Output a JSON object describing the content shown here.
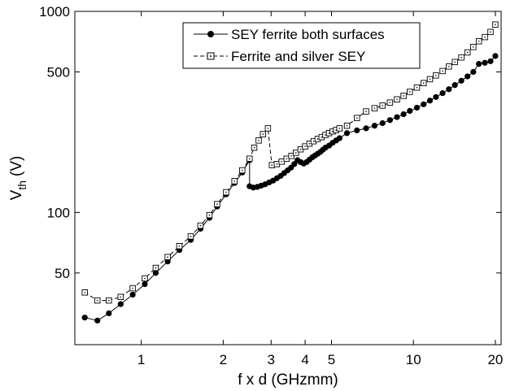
{
  "chart_data": {
    "type": "line",
    "xlabel": "f x d (GHzmm)",
    "ylabel": "V",
    "ylabel_sub": "th",
    "ylabel_unit": "(V)",
    "xscale": "log",
    "yscale": "log",
    "xlim": [
      0.57,
      21
    ],
    "ylim": [
      22,
      1000
    ],
    "x_ticks": [
      {
        "value": 1,
        "label": "1"
      },
      {
        "value": 2,
        "label": "2"
      },
      {
        "value": 3,
        "label": "3"
      },
      {
        "value": 4,
        "label": "4"
      },
      {
        "value": 5,
        "label": "5"
      },
      {
        "value": 10,
        "label": "10"
      },
      {
        "value": 20,
        "label": "20"
      }
    ],
    "y_ticks": [
      {
        "value": 50,
        "label": "50"
      },
      {
        "value": 100,
        "label": "100"
      },
      {
        "value": 500,
        "label": "500"
      },
      {
        "value": 1000,
        "label": "1000"
      }
    ],
    "legend_position": "top-right",
    "series": [
      {
        "name": "SEY ferrite both surfaces",
        "marker": "filled-circle",
        "line": "solid",
        "color": "#000000",
        "points": [
          [
            0.62,
            30
          ],
          [
            0.69,
            29
          ],
          [
            0.76,
            31.5
          ],
          [
            0.84,
            35
          ],
          [
            0.93,
            39
          ],
          [
            1.03,
            44
          ],
          [
            1.13,
            50
          ],
          [
            1.25,
            57
          ],
          [
            1.38,
            65
          ],
          [
            1.52,
            73
          ],
          [
            1.65,
            83
          ],
          [
            1.78,
            94
          ],
          [
            1.9,
            107
          ],
          [
            2.05,
            123
          ],
          [
            2.2,
            140
          ],
          [
            2.35,
            158
          ],
          [
            2.5,
            182
          ],
          [
            2.5,
            135
          ],
          [
            2.58,
            133
          ],
          [
            2.67,
            134
          ],
          [
            2.76,
            136
          ],
          [
            2.85,
            138
          ],
          [
            2.95,
            141
          ],
          [
            3.05,
            144
          ],
          [
            3.15,
            148
          ],
          [
            3.25,
            152
          ],
          [
            3.35,
            157
          ],
          [
            3.45,
            162
          ],
          [
            3.55,
            167
          ],
          [
            3.65,
            174
          ],
          [
            3.75,
            182
          ],
          [
            3.85,
            178
          ],
          [
            3.95,
            175
          ],
          [
            4.05,
            178
          ],
          [
            4.15,
            183
          ],
          [
            4.25,
            188
          ],
          [
            4.35,
            192
          ],
          [
            4.45,
            196
          ],
          [
            4.55,
            200
          ],
          [
            4.65,
            205
          ],
          [
            4.75,
            210
          ],
          [
            4.9,
            215
          ],
          [
            5.05,
            222
          ],
          [
            5.2,
            228
          ],
          [
            5.35,
            234
          ],
          [
            5.7,
            248
          ],
          [
            6.2,
            256
          ],
          [
            6.7,
            262
          ],
          [
            7.2,
            270
          ],
          [
            7.7,
            278
          ],
          [
            8.2,
            288
          ],
          [
            8.7,
            298
          ],
          [
            9.2,
            308
          ],
          [
            9.7,
            320
          ],
          [
            10.3,
            332
          ],
          [
            10.9,
            345
          ],
          [
            11.5,
            360
          ],
          [
            12.1,
            375
          ],
          [
            12.8,
            392
          ],
          [
            13.5,
            410
          ],
          [
            14.2,
            430
          ],
          [
            15,
            452
          ],
          [
            15.8,
            475
          ],
          [
            16.6,
            500
          ],
          [
            17.4,
            548
          ],
          [
            18.3,
            555
          ],
          [
            19.2,
            565
          ],
          [
            20,
            600
          ]
        ]
      },
      {
        "name": "Ferrite and silver SEY",
        "marker": "open-square-dot",
        "line": "dashed",
        "color": "#000000",
        "points": [
          [
            0.62,
            40
          ],
          [
            0.69,
            36.5
          ],
          [
            0.76,
            36.5
          ],
          [
            0.84,
            38
          ],
          [
            0.93,
            42
          ],
          [
            1.03,
            47
          ],
          [
            1.13,
            53
          ],
          [
            1.25,
            60
          ],
          [
            1.38,
            68
          ],
          [
            1.52,
            76
          ],
          [
            1.65,
            86
          ],
          [
            1.78,
            97
          ],
          [
            1.9,
            110
          ],
          [
            2.05,
            126
          ],
          [
            2.2,
            143
          ],
          [
            2.35,
            162
          ],
          [
            2.5,
            185
          ],
          [
            2.6,
            210
          ],
          [
            2.7,
            228
          ],
          [
            2.8,
            245
          ],
          [
            2.92,
            262
          ],
          [
            3.02,
            172
          ],
          [
            3.15,
            174
          ],
          [
            3.28,
            179
          ],
          [
            3.42,
            185
          ],
          [
            3.56,
            191
          ],
          [
            3.7,
            198
          ],
          [
            3.85,
            206
          ],
          [
            4.0,
            213
          ],
          [
            4.15,
            220
          ],
          [
            4.3,
            226
          ],
          [
            4.45,
            232
          ],
          [
            4.6,
            237
          ],
          [
            4.75,
            243
          ],
          [
            4.9,
            248
          ],
          [
            5.05,
            253
          ],
          [
            5.2,
            257
          ],
          [
            5.35,
            262
          ],
          [
            5.7,
            270
          ],
          [
            6.2,
            295
          ],
          [
            6.7,
            318
          ],
          [
            7.2,
            330
          ],
          [
            7.7,
            340
          ],
          [
            8.2,
            352
          ],
          [
            8.7,
            365
          ],
          [
            9.2,
            380
          ],
          [
            9.7,
            398
          ],
          [
            10.3,
            418
          ],
          [
            10.9,
            440
          ],
          [
            11.5,
            460
          ],
          [
            12.1,
            480
          ],
          [
            12.8,
            505
          ],
          [
            13.5,
            532
          ],
          [
            14.2,
            560
          ],
          [
            15,
            590
          ],
          [
            15.8,
            625
          ],
          [
            16.6,
            665
          ],
          [
            17.4,
            710
          ],
          [
            18.3,
            745
          ],
          [
            19.2,
            790
          ],
          [
            20,
            860
          ]
        ]
      }
    ]
  }
}
